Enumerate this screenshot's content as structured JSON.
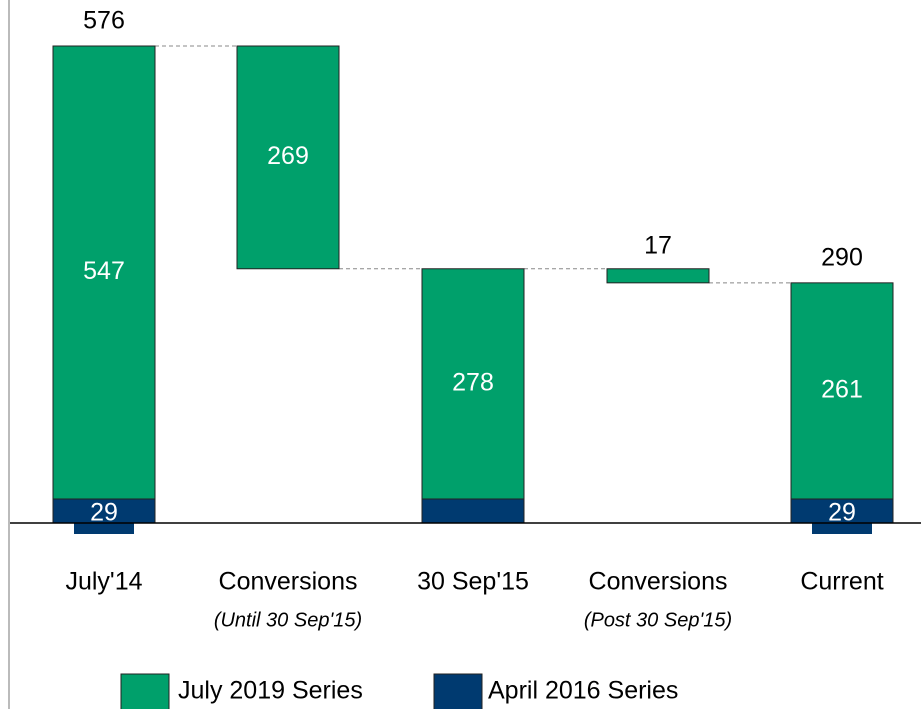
{
  "chart_data": {
    "type": "waterfall",
    "categories": [
      "July'14",
      "Conversions",
      "30 Sep'15",
      "Conversions",
      "Current"
    ],
    "subcategories": [
      null,
      "(Until 30 Sep'15)",
      null,
      "(Post 30 Sep'15)",
      null
    ],
    "measure": [
      "total",
      "decrease",
      "total",
      "decrease",
      "total"
    ],
    "series": [
      {
        "name": "April 2016 Series",
        "color": "#003a70",
        "values": [
          29,
          null,
          29,
          null,
          29
        ],
        "value_labels": [
          "29",
          null,
          null,
          null,
          "29"
        ]
      },
      {
        "name": "July 2019 Series",
        "color": "#00a06b",
        "values": [
          547,
          269,
          278,
          17,
          261
        ]
      }
    ],
    "totals": [
      576,
      null,
      null,
      null,
      290
    ]
  }
}
